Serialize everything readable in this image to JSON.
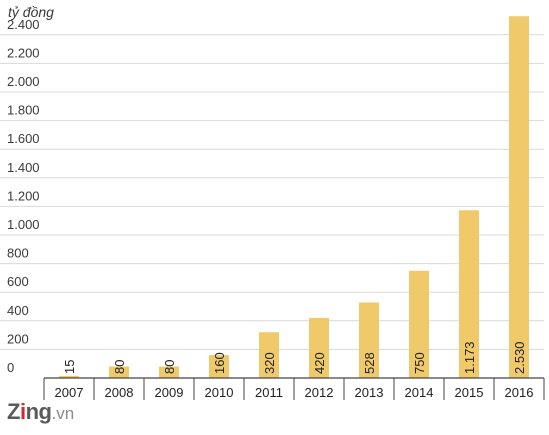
{
  "chart_data": {
    "type": "bar",
    "unit_label": "tỷ đồng",
    "categories": [
      "2007",
      "2008",
      "2009",
      "2010",
      "2011",
      "2012",
      "2013",
      "2014",
      "2015",
      "2016"
    ],
    "values": [
      15,
      80,
      80,
      160,
      320,
      420,
      528,
      750,
      1173,
      2530
    ],
    "value_labels": [
      "15",
      "80",
      "80",
      "160",
      "320",
      "420",
      "528",
      "750",
      "1.173",
      "2.530"
    ],
    "yticks": [
      0,
      200,
      400,
      600,
      800,
      1000,
      1200,
      1400,
      1600,
      1800,
      2000,
      2200,
      2400
    ],
    "ytick_labels": [
      "0",
      "200",
      "400",
      "600",
      "800",
      "1.000",
      "1.200",
      "1.400",
      "1.600",
      "1.800",
      "2.000",
      "2.200",
      "2.400"
    ],
    "ylim": [
      0,
      2400
    ],
    "grid": true,
    "bar_color": "#f0c96a",
    "grid_color": "#d9d9d9",
    "axis_color": "#444444"
  },
  "logo": {
    "brand_z": "Z",
    "brand_i": "i",
    "brand_rest": "ng",
    "domain": ".vn",
    "accent": "#d6262e"
  }
}
